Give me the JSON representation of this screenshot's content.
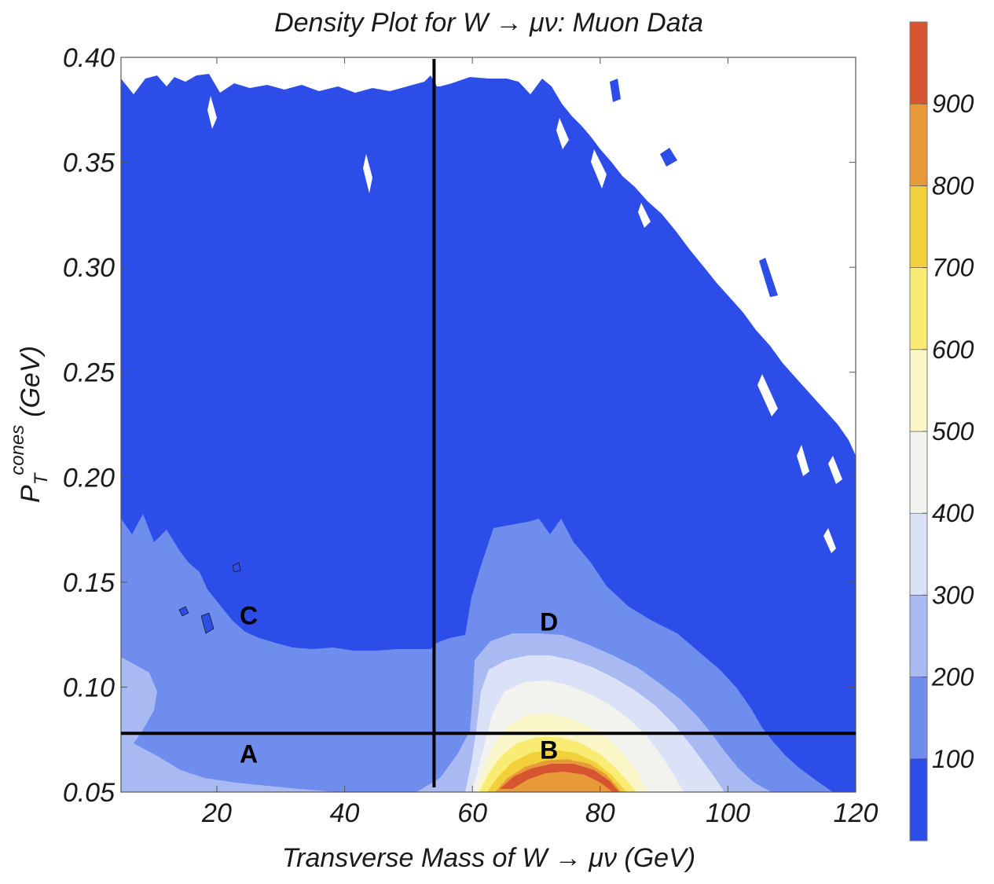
{
  "chart_data": {
    "type": "heatmap",
    "subtype": "contour density plot",
    "title": "Density Plot for W → μν: Muon Data",
    "xlabel": "Transverse Mass of W → μν (GeV)",
    "ylabel": {
      "base": "P",
      "subscript": "T",
      "superscript": "cones",
      "unit": "(GeV)"
    },
    "xlim": [
      5,
      120
    ],
    "ylim": [
      0.05,
      0.4
    ],
    "x_ticks": [
      20,
      40,
      60,
      80,
      100,
      120
    ],
    "y_ticks": [
      "0.05",
      "0.10",
      "0.15",
      "0.20",
      "0.25",
      "0.30",
      "0.35",
      "0.40"
    ],
    "colorbar": {
      "min": 0,
      "max": 1000,
      "ticks": [
        100,
        200,
        300,
        400,
        500,
        600,
        700,
        800,
        900
      ],
      "bands": [
        {
          "from": 0,
          "to": 100,
          "color": "#2c4de8"
        },
        {
          "from": 100,
          "to": 200,
          "color": "#6f8ded"
        },
        {
          "from": 200,
          "to": 300,
          "color": "#a9b9f1"
        },
        {
          "from": 300,
          "to": 400,
          "color": "#dbe2f8"
        },
        {
          "from": 400,
          "to": 500,
          "color": "#f2f2ee"
        },
        {
          "from": 500,
          "to": 600,
          "color": "#fbf6c8"
        },
        {
          "from": 600,
          "to": 700,
          "color": "#f8ec72"
        },
        {
          "from": 700,
          "to": 800,
          "color": "#f1d03c"
        },
        {
          "from": 800,
          "to": 900,
          "color": "#e89a38"
        },
        {
          "from": 900,
          "to": 1000,
          "color": "#d65530"
        }
      ]
    },
    "cut_lines": {
      "x": 54,
      "y": 0.078
    },
    "regions": [
      {
        "label": "A",
        "x": 25,
        "y": 0.064
      },
      {
        "label": "B",
        "x": 72,
        "y": 0.066
      },
      {
        "label": "C",
        "x": 25,
        "y": 0.13
      },
      {
        "label": "D",
        "x": 72,
        "y": 0.127
      }
    ],
    "peak": {
      "x": 76,
      "y": 0.05,
      "max_level": 1000
    },
    "grid": false
  }
}
